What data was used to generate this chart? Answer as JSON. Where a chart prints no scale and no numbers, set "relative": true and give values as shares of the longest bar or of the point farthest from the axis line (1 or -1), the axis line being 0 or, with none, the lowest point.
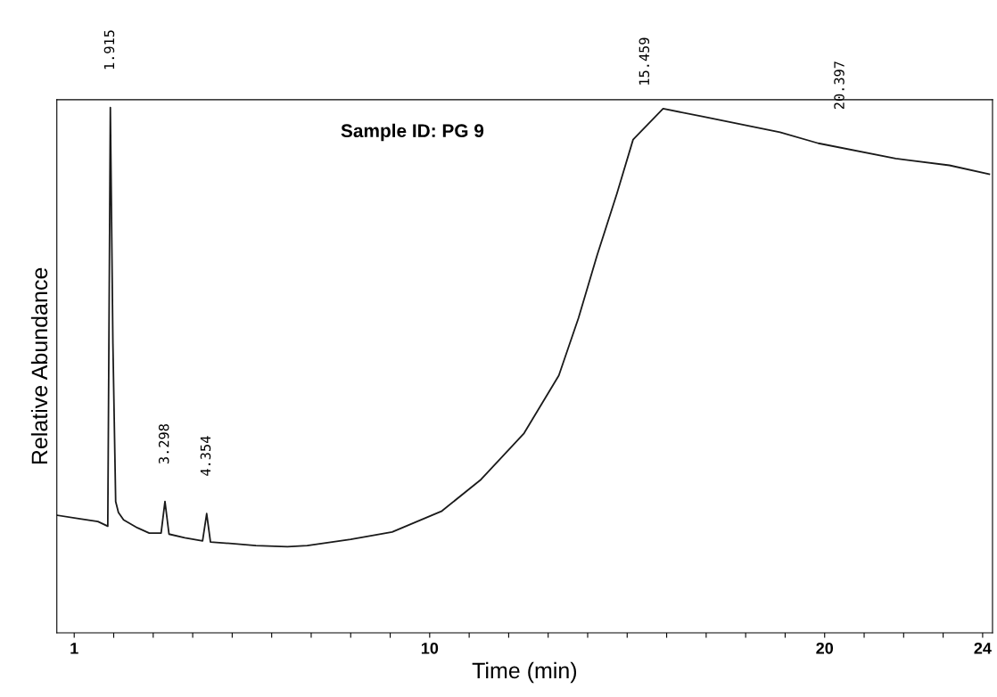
{
  "chart_data": {
    "type": "line",
    "title": "Sample ID: PG 9",
    "xlabel": "Time (min)",
    "ylabel": "Relative Abundance",
    "relative": true,
    "tick_labels": "x",
    "grid": false,
    "legend": false,
    "xlim": [
      0.56,
      24.25
    ],
    "xticks": [
      1,
      {
        "value": 2,
        "label": null
      },
      {
        "value": 3,
        "label": null
      },
      {
        "value": 4,
        "label": null
      },
      {
        "value": 5,
        "label": null
      },
      {
        "value": 6,
        "label": null
      },
      {
        "value": 7,
        "label": null
      },
      {
        "value": 8,
        "label": null
      },
      {
        "value": 9,
        "label": null
      },
      10,
      {
        "value": 11,
        "label": null
      },
      {
        "value": 12,
        "label": null
      },
      {
        "value": 13,
        "label": null
      },
      {
        "value": 14,
        "label": null
      },
      {
        "value": 15,
        "label": null
      },
      {
        "value": 16,
        "label": null
      },
      {
        "value": 17,
        "label": null
      },
      {
        "value": 18,
        "label": null
      },
      {
        "value": 19,
        "label": null
      },
      20,
      {
        "value": 21,
        "label": null
      },
      {
        "value": 22,
        "label": null
      },
      {
        "value": 23,
        "label": null
      },
      24
    ],
    "series": [
      {
        "color": "#1a1a1a",
        "x": [
          0.56,
          1.15,
          1.6,
          1.85,
          1.915,
          1.98,
          2.05,
          2.12,
          2.25,
          2.6,
          2.9,
          3.2,
          3.298,
          3.4,
          3.8,
          4.25,
          4.354,
          4.45,
          5.0,
          5.6,
          6.4,
          6.9,
          8.0,
          9.05,
          10.31,
          11.3,
          12.39,
          13.27,
          13.77,
          14.24,
          14.74,
          15.15,
          15.91,
          16.9,
          18.87,
          19.84,
          21.8,
          23.16,
          24.17
        ],
        "values": [
          0.224,
          0.217,
          0.212,
          0.203,
          1.0,
          0.55,
          0.25,
          0.229,
          0.215,
          0.2,
          0.19,
          0.19,
          0.25,
          0.188,
          0.181,
          0.175,
          0.227,
          0.173,
          0.17,
          0.166,
          0.164,
          0.166,
          0.178,
          0.192,
          0.232,
          0.292,
          0.38,
          0.49,
          0.6,
          0.719,
          0.836,
          0.939,
          0.998,
          0.983,
          0.953,
          0.932,
          0.903,
          0.89,
          0.873
        ]
      }
    ],
    "annotations": [
      {
        "text": "1.915",
        "x": 1.915,
        "y": 1.0
      },
      {
        "text": "3.298",
        "x": 3.298,
        "y": 0.25
      },
      {
        "text": "4.354",
        "x": 4.354,
        "y": 0.227
      },
      {
        "text": "15.459",
        "x": 15.459,
        "y": 0.97
      },
      {
        "text": "20.397",
        "x": 20.397,
        "y": 0.925
      }
    ]
  }
}
